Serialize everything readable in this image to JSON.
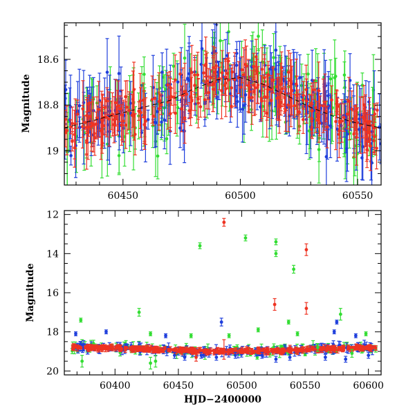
{
  "chart_data": [
    {
      "type": "scatter",
      "panel": "top",
      "title": "",
      "xlabel": "",
      "ylabel": "Magnitude",
      "xlim": [
        60425,
        60560
      ],
      "ylim": [
        19.15,
        18.44
      ],
      "y_inverted": true,
      "xticks": [
        60450,
        60500,
        60550
      ],
      "xtick_labels": [
        "60450",
        "60500",
        "60550"
      ],
      "yticks": [
        18.6,
        18.8,
        19.0
      ],
      "ytick_labels": [
        "18.6",
        "18.8",
        "19"
      ],
      "grid": false,
      "legend": "none",
      "colors": {
        "blue": "#1f3fdc",
        "green": "#33dd33",
        "red": "#ee3322",
        "model": "#000000"
      },
      "series": [
        {
          "color": "blue",
          "marker": "circle",
          "note": "dense",
          "points": []
        },
        {
          "color": "green",
          "marker": "circle",
          "points": []
        },
        {
          "color": "red",
          "marker": "circle",
          "points": []
        }
      ],
      "model_curve": {
        "style": "dashed",
        "x": [
          60425,
          60440,
          60455,
          60470,
          60480,
          60490,
          60500,
          60510,
          60520,
          60530,
          60540,
          60550,
          60560
        ],
        "y": [
          18.9,
          18.86,
          18.82,
          18.78,
          18.73,
          18.69,
          18.68,
          18.71,
          18.76,
          18.81,
          18.85,
          18.88,
          18.9
        ]
      }
    },
    {
      "type": "scatter",
      "panel": "bottom",
      "title": "",
      "xlabel": "HJD−2400000",
      "ylabel": "Magnitude",
      "xlim": [
        60360,
        60610
      ],
      "ylim": [
        20.2,
        11.8
      ],
      "y_inverted": true,
      "xticks": [
        60400,
        60450,
        60500,
        60550,
        60600
      ],
      "xtick_labels": [
        "60400",
        "60450",
        "60500",
        "60550",
        "60600"
      ],
      "yticks": [
        12,
        14,
        16,
        18,
        20
      ],
      "ytick_labels": [
        "12",
        "14",
        "16",
        "18",
        "20"
      ],
      "grid": false,
      "legend": "none",
      "colors": {
        "blue": "#1f3fdc",
        "green": "#33dd33",
        "red": "#ee3322"
      },
      "outliers": [
        {
          "color": "red",
          "x": 60486,
          "y": 12.4,
          "err": 0.2
        },
        {
          "color": "green",
          "x": 60467,
          "y": 13.6,
          "err": 0.15
        },
        {
          "color": "green",
          "x": 60503,
          "y": 13.2,
          "err": 0.15
        },
        {
          "color": "green",
          "x": 60527,
          "y": 13.4,
          "err": 0.15
        },
        {
          "color": "green",
          "x": 60527,
          "y": 14.0,
          "err": 0.15
        },
        {
          "color": "red",
          "x": 60551,
          "y": 13.8,
          "err": 0.3
        },
        {
          "color": "green",
          "x": 60541,
          "y": 14.8,
          "err": 0.2
        },
        {
          "color": "red",
          "x": 60526,
          "y": 16.6,
          "err": 0.3
        },
        {
          "color": "red",
          "x": 60551,
          "y": 16.8,
          "err": 0.3
        },
        {
          "color": "green",
          "x": 60419,
          "y": 17.0,
          "err": 0.2
        },
        {
          "color": "green",
          "x": 60578,
          "y": 17.1,
          "err": 0.3
        },
        {
          "color": "green",
          "x": 60373,
          "y": 17.4,
          "err": 0.1
        },
        {
          "color": "green",
          "x": 60537,
          "y": 17.5,
          "err": 0.1
        },
        {
          "color": "blue",
          "x": 60484,
          "y": 17.5,
          "err": 0.2
        },
        {
          "color": "blue",
          "x": 60575,
          "y": 17.5,
          "err": 0.1
        },
        {
          "color": "green",
          "x": 60513,
          "y": 17.9,
          "err": 0.1
        },
        {
          "color": "blue",
          "x": 60573,
          "y": 18.0,
          "err": 0.1
        },
        {
          "color": "blue",
          "x": 60393,
          "y": 18.0,
          "err": 0.1
        },
        {
          "color": "blue",
          "x": 60369,
          "y": 18.1,
          "err": 0.1
        },
        {
          "color": "green",
          "x": 60428,
          "y": 18.1,
          "err": 0.1
        },
        {
          "color": "blue",
          "x": 60440,
          "y": 18.2,
          "err": 0.1
        },
        {
          "color": "green",
          "x": 60460,
          "y": 18.2,
          "err": 0.1
        },
        {
          "color": "green",
          "x": 60490,
          "y": 18.2,
          "err": 0.1
        },
        {
          "color": "green",
          "x": 60544,
          "y": 18.1,
          "err": 0.1
        },
        {
          "color": "blue",
          "x": 60590,
          "y": 18.2,
          "err": 0.1
        },
        {
          "color": "green",
          "x": 60598,
          "y": 18.1,
          "err": 0.1
        },
        {
          "color": "green",
          "x": 60374,
          "y": 19.5,
          "err": 0.3
        },
        {
          "color": "green",
          "x": 60428,
          "y": 19.6,
          "err": 0.3
        },
        {
          "color": "green",
          "x": 60432,
          "y": 19.5,
          "err": 0.3
        },
        {
          "color": "blue",
          "x": 60447,
          "y": 19.2,
          "err": 0.15
        },
        {
          "color": "blue",
          "x": 60455,
          "y": 19.3,
          "err": 0.15
        },
        {
          "color": "blue",
          "x": 60468,
          "y": 19.2,
          "err": 0.15
        },
        {
          "color": "blue",
          "x": 60480,
          "y": 19.3,
          "err": 0.15
        },
        {
          "color": "blue",
          "x": 60495,
          "y": 19.2,
          "err": 0.15
        },
        {
          "color": "blue",
          "x": 60516,
          "y": 19.2,
          "err": 0.15
        },
        {
          "color": "blue",
          "x": 60527,
          "y": 19.4,
          "err": 0.15
        },
        {
          "color": "blue",
          "x": 60538,
          "y": 19.3,
          "err": 0.15
        },
        {
          "color": "blue",
          "x": 60566,
          "y": 19.3,
          "err": 0.15
        },
        {
          "color": "blue",
          "x": 60582,
          "y": 19.4,
          "err": 0.15
        },
        {
          "color": "blue",
          "x": 60600,
          "y": 19.2,
          "err": 0.15
        },
        {
          "color": "red",
          "x": 60464,
          "y": 19.3,
          "err": 0.2
        },
        {
          "color": "red",
          "x": 60486,
          "y": 18.9,
          "err": 0.5
        },
        {
          "color": "green",
          "x": 60587,
          "y": 19.1,
          "err": 0.2
        },
        {
          "color": "green",
          "x": 60560,
          "y": 18.8,
          "err": 0.2
        }
      ],
      "baseline_magnitude": 18.9
    }
  ]
}
